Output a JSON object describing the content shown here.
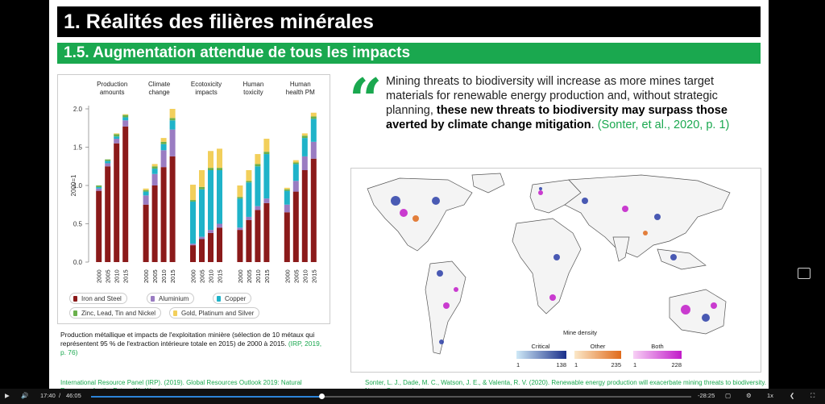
{
  "slide": {
    "title": "1. Réalités des filières minérales",
    "subtitle": "1.5. Augmentation attendue de tous les impacts"
  },
  "chart_data": {
    "type": "bar",
    "stacked": true,
    "ylabel": "2000=1",
    "ylim": [
      0,
      2.0
    ],
    "yticks": [
      "0.0",
      "0.5",
      "1.0",
      "1.5",
      "2.0"
    ],
    "groups": [
      "Production amounts",
      "Climate change",
      "Ecotoxicity impacts",
      "Human toxicity",
      "Human health PM"
    ],
    "group_labels": [
      [
        "Production",
        "amounts"
      ],
      [
        "Climate",
        "change"
      ],
      [
        "Ecotoxicity",
        "impacts"
      ],
      [
        "Human",
        "toxicity"
      ],
      [
        "Human",
        "health PM"
      ]
    ],
    "years": [
      "2000",
      "2005",
      "2010",
      "2015"
    ],
    "series": [
      {
        "name": "Iron and Steel",
        "color": "#8b1a1a",
        "values": [
          [
            0.93,
            1.25,
            1.55,
            1.77
          ],
          [
            0.75,
            1.0,
            1.24,
            1.38
          ],
          [
            0.22,
            0.3,
            0.38,
            0.45
          ],
          [
            0.42,
            0.55,
            0.68,
            0.77
          ],
          [
            0.65,
            0.92,
            1.2,
            1.35
          ]
        ]
      },
      {
        "name": "Aluminium",
        "color": "#9a7cc2",
        "values": [
          [
            0.03,
            0.04,
            0.06,
            0.08
          ],
          [
            0.12,
            0.15,
            0.22,
            0.35
          ],
          [
            0.02,
            0.03,
            0.04,
            0.05
          ],
          [
            0.03,
            0.04,
            0.05,
            0.06
          ],
          [
            0.1,
            0.14,
            0.18,
            0.22
          ]
        ]
      },
      {
        "name": "Copper",
        "color": "#1fb3c9",
        "values": [
          [
            0.02,
            0.03,
            0.03,
            0.04
          ],
          [
            0.05,
            0.07,
            0.08,
            0.12
          ],
          [
            0.55,
            0.62,
            0.78,
            0.7
          ],
          [
            0.38,
            0.45,
            0.52,
            0.58
          ],
          [
            0.18,
            0.22,
            0.24,
            0.3
          ]
        ]
      },
      {
        "name": "Zinc, Lead, Tin and Nickel",
        "color": "#6ab04c",
        "values": [
          [
            0.02,
            0.02,
            0.03,
            0.03
          ],
          [
            0.02,
            0.03,
            0.03,
            0.03
          ],
          [
            0.02,
            0.03,
            0.03,
            0.03
          ],
          [
            0.02,
            0.02,
            0.03,
            0.03
          ],
          [
            0.02,
            0.02,
            0.03,
            0.03
          ]
        ]
      },
      {
        "name": "Gold, Platinum and Silver",
        "color": "#f2cf5b",
        "values": [
          [
            0.0,
            0.0,
            0.01,
            0.01
          ],
          [
            0.02,
            0.03,
            0.05,
            0.12
          ],
          [
            0.2,
            0.22,
            0.22,
            0.25
          ],
          [
            0.15,
            0.14,
            0.13,
            0.17
          ],
          [
            0.02,
            0.03,
            0.03,
            0.05
          ]
        ]
      }
    ]
  },
  "caption": {
    "text": "Production métallique et impacts de l'exploitation minière (sélection de 10 métaux qui représentent 95 % de l'extraction intérieure totale en 2015) de 2000 à 2015.",
    "cite": "(IRP, 2019, p. 76)"
  },
  "ref_left": "International Resource Panel (IRP). (2019). Global Resources Outlook 2019: Natural Resources for the Future We Want",
  "quote": {
    "mark": "“",
    "plain": "Mining threats to biodiversity will increase as more mines target materials for renewable energy production and, without strategic planning, ",
    "bold": "these new threats to biodiversity may surpass those averted by climate change mitigation",
    "end": ". ",
    "cite": "(Sonter, et al., 2020, p. 1)"
  },
  "map_legend": {
    "title": "Mine density",
    "items": [
      {
        "label": "Critical",
        "min": "1",
        "max": "138",
        "from": "#cfe9f7",
        "to": "#1a2f8a"
      },
      {
        "label": "Other",
        "min": "1",
        "max": "235",
        "from": "#fbe8c8",
        "to": "#e06a1b"
      },
      {
        "label": "Both",
        "min": "1",
        "max": "228",
        "from": "#f7d0f5",
        "to": "#c21bc9"
      }
    ]
  },
  "ref_right": "Sonter, L. J., Dade, M. C., Watson, J. E., & Valenta, R. V. (2020). Renewable energy production will exacerbate mining threats to biodiversity. Nature Communications",
  "player": {
    "current_time": "17:40",
    "separator": "/",
    "duration": "46:05",
    "remaining": "-28:25",
    "speed": "1x",
    "progress": 0.384
  }
}
